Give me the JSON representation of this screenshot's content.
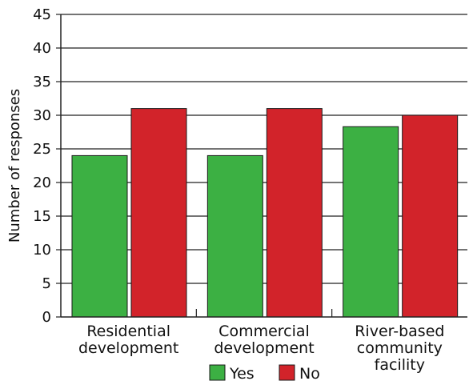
{
  "chart_data": {
    "type": "bar",
    "categories": [
      [
        "Residential",
        "development"
      ],
      [
        "Commercial",
        "development"
      ],
      [
        "River-based",
        "community",
        "facility"
      ]
    ],
    "series": [
      {
        "name": "Yes",
        "values": [
          24,
          24,
          28.3
        ],
        "color": "#3cb043"
      },
      {
        "name": "No",
        "values": [
          31,
          31,
          30
        ],
        "color": "#d2232a"
      }
    ],
    "xlabel": "",
    "ylabel": "Number of responses",
    "ylim": [
      0,
      45
    ],
    "yticks": [
      0,
      5,
      10,
      15,
      20,
      25,
      30,
      35,
      40,
      45
    ],
    "grid": true,
    "legend_position": "bottom-center"
  }
}
